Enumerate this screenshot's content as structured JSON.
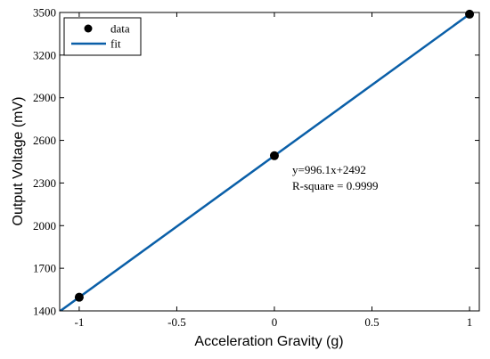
{
  "chart_data": {
    "type": "scatter",
    "xlabel": "Acceleration Gravity (g)",
    "ylabel": "Output Voltage (mV)",
    "xlim": [
      -1.1,
      1.05
    ],
    "ylim": [
      1400,
      3500
    ],
    "x_ticks": [
      -1,
      -0.5,
      0,
      0.5,
      1
    ],
    "x_tick_labels": [
      "-1",
      "-0.5",
      "0",
      "0.5",
      "1"
    ],
    "y_ticks": [
      1400,
      1700,
      2000,
      2300,
      2600,
      2900,
      3200,
      3500
    ],
    "y_tick_labels": [
      "1400",
      "1700",
      "2000",
      "2300",
      "2600",
      "2900",
      "3200",
      "3500"
    ],
    "grid": false,
    "legend_position": "top-left",
    "series": [
      {
        "name": "data",
        "kind": "scatter",
        "color": "#000000",
        "x": [
          -1,
          0,
          1
        ],
        "y": [
          1496,
          2492,
          3488
        ]
      },
      {
        "name": "fit",
        "kind": "line",
        "color": "#0a5fa8",
        "slope": 996.1,
        "intercept": 2492
      }
    ],
    "annotations": [
      "y=996.1x+2492",
      "R-square = 0.9999"
    ]
  }
}
